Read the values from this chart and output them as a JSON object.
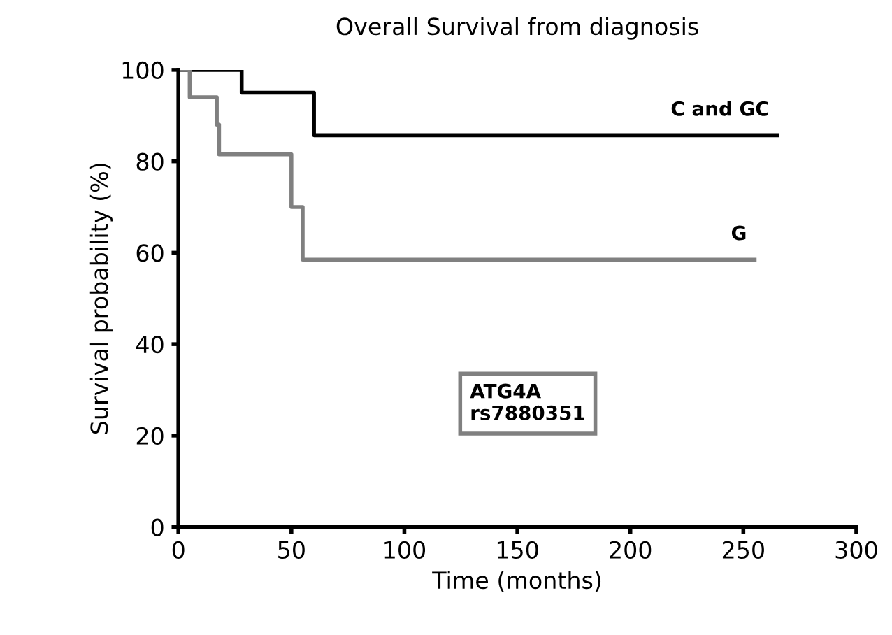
{
  "chart_data": {
    "type": "step",
    "title": "Overall Survival from diagnosis",
    "xlabel": "Time (months)",
    "ylabel": "Survival probability (%)",
    "xlim": [
      0,
      300
    ],
    "xticks": [
      0,
      50,
      100,
      150,
      200,
      250,
      300
    ],
    "ylim": [
      0,
      100
    ],
    "yticks": [
      0,
      20,
      40,
      60,
      80,
      100
    ],
    "grid": false,
    "legend": false,
    "marker": "none",
    "line_style": "solid",
    "series": [
      {
        "name": "C and GC",
        "color": "#000000",
        "x": [
          0,
          28,
          60,
          265
        ],
        "values": [
          100,
          95,
          85.7,
          85.7
        ]
      },
      {
        "name": "G",
        "color": "#808080",
        "x": [
          0,
          5,
          17,
          18,
          50,
          55,
          255
        ],
        "values": [
          100,
          94,
          88,
          81.5,
          70,
          58.5,
          58.5
        ]
      }
    ],
    "annotations": [
      "ATG4A\nrs7880351"
    ]
  }
}
